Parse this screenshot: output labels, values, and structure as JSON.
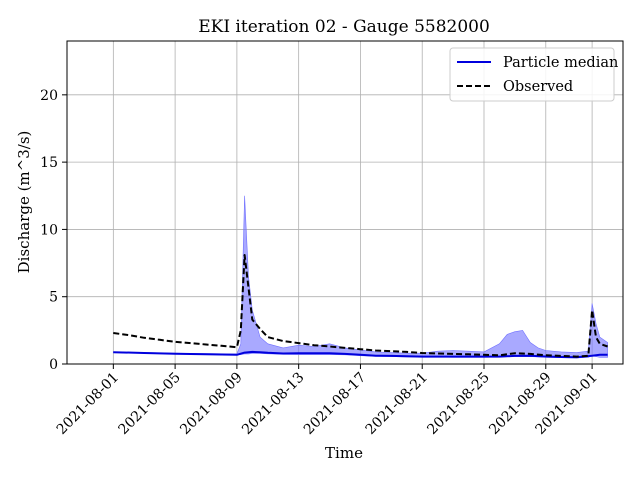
{
  "chart_data": {
    "type": "line",
    "title": "EKI iteration 02 - Gauge 5582000",
    "xlabel": "Time",
    "ylabel": "Discharge (m^3/s)",
    "x_range": [
      "2021-07-29",
      "2021-09-03"
    ],
    "ylim": [
      0,
      24
    ],
    "grid": true,
    "legend_position": "top-right",
    "x_ticks": [
      "2021-08-01",
      "2021-08-05",
      "2021-08-09",
      "2021-08-13",
      "2021-08-17",
      "2021-08-21",
      "2021-08-25",
      "2021-08-29",
      "2021-09-01"
    ],
    "y_ticks": [
      0,
      5,
      10,
      15,
      20
    ],
    "colors": {
      "median": "#0000dd",
      "band": "#7070ff",
      "observed": "#000000",
      "grid": "#b0b0b0"
    },
    "series": [
      {
        "name": "Particle median",
        "style": "solid",
        "x": [
          "2021-08-01",
          "2021-08-03",
          "2021-08-05",
          "2021-08-07",
          "2021-08-09",
          "2021-08-09T12:00",
          "2021-08-10",
          "2021-08-10T12:00",
          "2021-08-11",
          "2021-08-12",
          "2021-08-13",
          "2021-08-14",
          "2021-08-15",
          "2021-08-16",
          "2021-08-17",
          "2021-08-18",
          "2021-08-19",
          "2021-08-20",
          "2021-08-21",
          "2021-08-22",
          "2021-08-23",
          "2021-08-24",
          "2021-08-25",
          "2021-08-26",
          "2021-08-27",
          "2021-08-28",
          "2021-08-29",
          "2021-08-30",
          "2021-08-31",
          "2021-09-01",
          "2021-09-01T12:00",
          "2021-09-02"
        ],
        "y": [
          0.88,
          0.82,
          0.76,
          0.72,
          0.68,
          0.85,
          0.9,
          0.88,
          0.83,
          0.78,
          0.8,
          0.8,
          0.8,
          0.75,
          0.68,
          0.62,
          0.6,
          0.57,
          0.55,
          0.55,
          0.55,
          0.55,
          0.55,
          0.55,
          0.6,
          0.62,
          0.56,
          0.52,
          0.5,
          0.62,
          0.68,
          0.68
        ]
      },
      {
        "name": "Observed",
        "style": "dashed",
        "x": [
          "2021-08-01",
          "2021-08-02",
          "2021-08-03",
          "2021-08-04",
          "2021-08-05",
          "2021-08-06",
          "2021-08-07",
          "2021-08-08",
          "2021-08-09",
          "2021-08-09T06:00",
          "2021-08-09T12:00",
          "2021-08-10",
          "2021-08-10T12:00",
          "2021-08-11",
          "2021-08-12",
          "2021-08-13",
          "2021-08-14",
          "2021-08-15",
          "2021-08-16",
          "2021-08-17",
          "2021-08-18",
          "2021-08-19",
          "2021-08-20",
          "2021-08-21",
          "2021-08-22",
          "2021-08-23",
          "2021-08-24",
          "2021-08-25",
          "2021-08-26",
          "2021-08-27",
          "2021-08-28",
          "2021-08-29",
          "2021-08-30",
          "2021-08-31",
          "2021-08-31T18:00",
          "2021-09-01",
          "2021-09-01T06:00",
          "2021-09-01T12:00",
          "2021-09-02"
        ],
        "y": [
          2.3,
          2.15,
          1.95,
          1.8,
          1.65,
          1.55,
          1.45,
          1.35,
          1.25,
          2.5,
          8.1,
          3.3,
          2.6,
          2.0,
          1.7,
          1.55,
          1.4,
          1.3,
          1.2,
          1.1,
          1.0,
          0.95,
          0.9,
          0.82,
          0.78,
          0.75,
          0.72,
          0.68,
          0.65,
          0.8,
          0.75,
          0.65,
          0.6,
          0.55,
          0.6,
          4.0,
          2.0,
          1.5,
          1.3
        ]
      }
    ],
    "band": {
      "name": "Particle spread",
      "x": [
        "2021-08-01",
        "2021-08-05",
        "2021-08-09",
        "2021-08-09T06:00",
        "2021-08-09T12:00",
        "2021-08-09T18:00",
        "2021-08-10",
        "2021-08-10T12:00",
        "2021-08-11",
        "2021-08-12",
        "2021-08-13",
        "2021-08-14",
        "2021-08-15",
        "2021-08-16",
        "2021-08-17",
        "2021-08-18",
        "2021-08-19",
        "2021-08-20",
        "2021-08-21",
        "2021-08-22",
        "2021-08-23",
        "2021-08-24",
        "2021-08-25",
        "2021-08-26",
        "2021-08-26T12:00",
        "2021-08-27",
        "2021-08-27T12:00",
        "2021-08-28",
        "2021-08-28T12:00",
        "2021-08-29",
        "2021-08-30",
        "2021-08-31",
        "2021-08-31T18:00",
        "2021-09-01",
        "2021-09-01T06:00",
        "2021-09-01T12:00",
        "2021-09-02"
      ],
      "lower": [
        0.85,
        0.75,
        0.68,
        0.7,
        0.75,
        0.75,
        0.78,
        0.78,
        0.76,
        0.72,
        0.7,
        0.7,
        0.7,
        0.68,
        0.62,
        0.57,
        0.55,
        0.53,
        0.52,
        0.52,
        0.5,
        0.5,
        0.5,
        0.52,
        0.54,
        0.55,
        0.55,
        0.55,
        0.52,
        0.5,
        0.47,
        0.45,
        0.5,
        0.6,
        0.55,
        0.5,
        0.5
      ],
      "upper": [
        0.9,
        0.8,
        0.75,
        1.5,
        12.5,
        6.5,
        4.0,
        2.0,
        1.5,
        1.2,
        1.4,
        1.3,
        1.5,
        1.2,
        1.05,
        0.9,
        0.85,
        0.8,
        0.8,
        0.95,
        1.0,
        0.95,
        0.9,
        1.5,
        2.2,
        2.4,
        2.5,
        1.6,
        1.2,
        1.0,
        0.9,
        0.85,
        0.95,
        4.5,
        3.0,
        2.0,
        1.6
      ]
    }
  }
}
